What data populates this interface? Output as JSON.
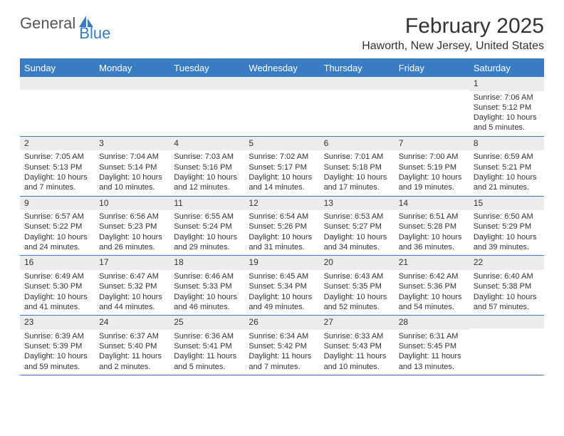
{
  "logo": {
    "part1": "General",
    "part2": "Blue"
  },
  "title": "February 2025",
  "location": "Haworth, New Jersey, United States",
  "colors": {
    "accent": "#3a7cc4",
    "band": "#ececec",
    "text": "#333333",
    "bg": "#ffffff"
  },
  "weekdays": [
    "Sunday",
    "Monday",
    "Tuesday",
    "Wednesday",
    "Thursday",
    "Friday",
    "Saturday"
  ],
  "weeks": [
    [
      {
        "day": "",
        "sunrise": "",
        "sunset": "",
        "daylight": ""
      },
      {
        "day": "",
        "sunrise": "",
        "sunset": "",
        "daylight": ""
      },
      {
        "day": "",
        "sunrise": "",
        "sunset": "",
        "daylight": ""
      },
      {
        "day": "",
        "sunrise": "",
        "sunset": "",
        "daylight": ""
      },
      {
        "day": "",
        "sunrise": "",
        "sunset": "",
        "daylight": ""
      },
      {
        "day": "",
        "sunrise": "",
        "sunset": "",
        "daylight": ""
      },
      {
        "day": "1",
        "sunrise": "Sunrise: 7:06 AM",
        "sunset": "Sunset: 5:12 PM",
        "daylight": "Daylight: 10 hours and 5 minutes."
      }
    ],
    [
      {
        "day": "2",
        "sunrise": "Sunrise: 7:05 AM",
        "sunset": "Sunset: 5:13 PM",
        "daylight": "Daylight: 10 hours and 7 minutes."
      },
      {
        "day": "3",
        "sunrise": "Sunrise: 7:04 AM",
        "sunset": "Sunset: 5:14 PM",
        "daylight": "Daylight: 10 hours and 10 minutes."
      },
      {
        "day": "4",
        "sunrise": "Sunrise: 7:03 AM",
        "sunset": "Sunset: 5:16 PM",
        "daylight": "Daylight: 10 hours and 12 minutes."
      },
      {
        "day": "5",
        "sunrise": "Sunrise: 7:02 AM",
        "sunset": "Sunset: 5:17 PM",
        "daylight": "Daylight: 10 hours and 14 minutes."
      },
      {
        "day": "6",
        "sunrise": "Sunrise: 7:01 AM",
        "sunset": "Sunset: 5:18 PM",
        "daylight": "Daylight: 10 hours and 17 minutes."
      },
      {
        "day": "7",
        "sunrise": "Sunrise: 7:00 AM",
        "sunset": "Sunset: 5:19 PM",
        "daylight": "Daylight: 10 hours and 19 minutes."
      },
      {
        "day": "8",
        "sunrise": "Sunrise: 6:59 AM",
        "sunset": "Sunset: 5:21 PM",
        "daylight": "Daylight: 10 hours and 21 minutes."
      }
    ],
    [
      {
        "day": "9",
        "sunrise": "Sunrise: 6:57 AM",
        "sunset": "Sunset: 5:22 PM",
        "daylight": "Daylight: 10 hours and 24 minutes."
      },
      {
        "day": "10",
        "sunrise": "Sunrise: 6:56 AM",
        "sunset": "Sunset: 5:23 PM",
        "daylight": "Daylight: 10 hours and 26 minutes."
      },
      {
        "day": "11",
        "sunrise": "Sunrise: 6:55 AM",
        "sunset": "Sunset: 5:24 PM",
        "daylight": "Daylight: 10 hours and 29 minutes."
      },
      {
        "day": "12",
        "sunrise": "Sunrise: 6:54 AM",
        "sunset": "Sunset: 5:26 PM",
        "daylight": "Daylight: 10 hours and 31 minutes."
      },
      {
        "day": "13",
        "sunrise": "Sunrise: 6:53 AM",
        "sunset": "Sunset: 5:27 PM",
        "daylight": "Daylight: 10 hours and 34 minutes."
      },
      {
        "day": "14",
        "sunrise": "Sunrise: 6:51 AM",
        "sunset": "Sunset: 5:28 PM",
        "daylight": "Daylight: 10 hours and 36 minutes."
      },
      {
        "day": "15",
        "sunrise": "Sunrise: 6:50 AM",
        "sunset": "Sunset: 5:29 PM",
        "daylight": "Daylight: 10 hours and 39 minutes."
      }
    ],
    [
      {
        "day": "16",
        "sunrise": "Sunrise: 6:49 AM",
        "sunset": "Sunset: 5:30 PM",
        "daylight": "Daylight: 10 hours and 41 minutes."
      },
      {
        "day": "17",
        "sunrise": "Sunrise: 6:47 AM",
        "sunset": "Sunset: 5:32 PM",
        "daylight": "Daylight: 10 hours and 44 minutes."
      },
      {
        "day": "18",
        "sunrise": "Sunrise: 6:46 AM",
        "sunset": "Sunset: 5:33 PM",
        "daylight": "Daylight: 10 hours and 46 minutes."
      },
      {
        "day": "19",
        "sunrise": "Sunrise: 6:45 AM",
        "sunset": "Sunset: 5:34 PM",
        "daylight": "Daylight: 10 hours and 49 minutes."
      },
      {
        "day": "20",
        "sunrise": "Sunrise: 6:43 AM",
        "sunset": "Sunset: 5:35 PM",
        "daylight": "Daylight: 10 hours and 52 minutes."
      },
      {
        "day": "21",
        "sunrise": "Sunrise: 6:42 AM",
        "sunset": "Sunset: 5:36 PM",
        "daylight": "Daylight: 10 hours and 54 minutes."
      },
      {
        "day": "22",
        "sunrise": "Sunrise: 6:40 AM",
        "sunset": "Sunset: 5:38 PM",
        "daylight": "Daylight: 10 hours and 57 minutes."
      }
    ],
    [
      {
        "day": "23",
        "sunrise": "Sunrise: 6:39 AM",
        "sunset": "Sunset: 5:39 PM",
        "daylight": "Daylight: 10 hours and 59 minutes."
      },
      {
        "day": "24",
        "sunrise": "Sunrise: 6:37 AM",
        "sunset": "Sunset: 5:40 PM",
        "daylight": "Daylight: 11 hours and 2 minutes."
      },
      {
        "day": "25",
        "sunrise": "Sunrise: 6:36 AM",
        "sunset": "Sunset: 5:41 PM",
        "daylight": "Daylight: 11 hours and 5 minutes."
      },
      {
        "day": "26",
        "sunrise": "Sunrise: 6:34 AM",
        "sunset": "Sunset: 5:42 PM",
        "daylight": "Daylight: 11 hours and 7 minutes."
      },
      {
        "day": "27",
        "sunrise": "Sunrise: 6:33 AM",
        "sunset": "Sunset: 5:43 PM",
        "daylight": "Daylight: 11 hours and 10 minutes."
      },
      {
        "day": "28",
        "sunrise": "Sunrise: 6:31 AM",
        "sunset": "Sunset: 5:45 PM",
        "daylight": "Daylight: 11 hours and 13 minutes."
      },
      {
        "day": "",
        "sunrise": "",
        "sunset": "",
        "daylight": ""
      }
    ]
  ]
}
